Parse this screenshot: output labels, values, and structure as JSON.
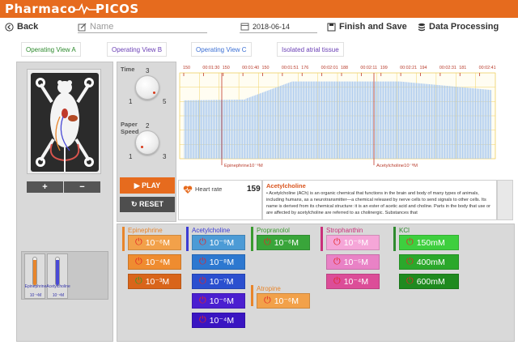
{
  "header": {
    "brand_left": "Pharmaco",
    "brand_right": "PICOS"
  },
  "toolbar": {
    "back_label": "Back",
    "name_placeholder": "Name",
    "date": "2018-06-14",
    "finish_label": "Finish and Save",
    "data_label": "Data Processing"
  },
  "tabs": [
    "Operating View A",
    "Operating View B",
    "Operating View C",
    "Isolated atrial tissue"
  ],
  "left_panel": {
    "zoom_in": "+",
    "zoom_out": "−",
    "tubes": [
      {
        "label": "Epinephrine",
        "conc": "10⁻⁶M",
        "color": "#e8852b",
        "fill": 0.9
      },
      {
        "label": "Acetylcholine",
        "conc": "10⁻⁸M",
        "color": "#4a4ad6",
        "fill": 0.9
      }
    ]
  },
  "controls": {
    "time_label": "Time",
    "time_ticks": [
      "3",
      "1",
      "5"
    ],
    "speed_label": "Paper\nSpeed",
    "speed_ticks": [
      "2",
      "1",
      "3"
    ],
    "play_label": "PLAY",
    "reset_label": "RESET"
  },
  "chart_data": {
    "type": "line",
    "title": "",
    "xlabel": "",
    "ylabel": "",
    "time_markers": [
      "150",
      "00:01:30",
      "150",
      "00:01:40",
      "150",
      "00:01:51",
      "176",
      "00:02:01",
      "188",
      "00:02:11",
      "199",
      "00:02:21",
      "194",
      "00:02:31",
      "181",
      "00:02:41"
    ],
    "event_markers": [
      {
        "label": "Epinephrine10⁻⁶M",
        "time": "00:01:40"
      },
      {
        "label": "Acetylcholine10⁻⁸M",
        "time": "00:02:21"
      }
    ],
    "grid": true,
    "colors": {
      "trace": "#a8c8f0",
      "marker": "#c0392b",
      "grid": "#f2d267"
    }
  },
  "heart_rate": {
    "label": "Heart rate",
    "value": "159"
  },
  "description": {
    "title": "Acetylcholine",
    "text": "• Acetylcholine (ACh) is an organic chemical that functions in the brain and body of many types of animals, including humans, as a neurotransmitter—a chemical released by nerve cells to send signals to other cells. Its name is derived from its chemical structure: it is an ester of acetic acid and choline. Parts in the body that use or are affected by acetylcholine are referred to as cholinergic. Substances that"
  },
  "drugs": {
    "epinephrine": {
      "name": "Epinephrine",
      "color": "#e8852b",
      "doses": [
        "10⁻⁶M",
        "10⁻⁴M",
        "10⁻³M"
      ]
    },
    "acetylcholine": {
      "name": "Acetylcholine",
      "color": "#3b3bd4",
      "doses": [
        "10⁻⁹M",
        "10⁻⁸M",
        "10⁻⁷M",
        "10⁻⁶M",
        "10⁻⁴M"
      ]
    },
    "propranolol": {
      "name": "Propranolol",
      "color": "#3a9a2f",
      "doses": [
        "10⁻⁶M"
      ]
    },
    "atropine": {
      "name": "Atropine",
      "color": "#e8852b",
      "doses": [
        "10⁻⁶M"
      ]
    },
    "strophanthin": {
      "name": "Strophanthin",
      "color": "#c9307a",
      "doses": [
        "10⁻⁸M",
        "10⁻⁵M",
        "10⁻⁴M"
      ]
    },
    "kcl": {
      "name": "KCl",
      "color": "#2f8a2f",
      "doses": [
        "150mM",
        "400mM",
        "600mM"
      ]
    }
  }
}
